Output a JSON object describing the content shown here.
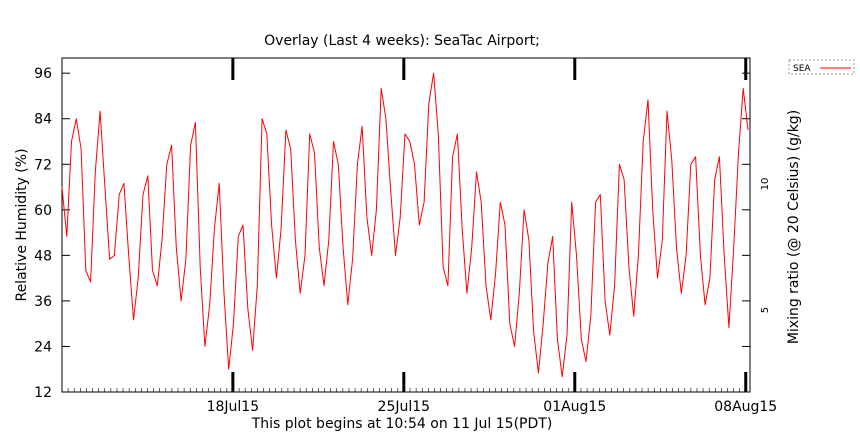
{
  "chart_data": {
    "type": "line",
    "title": "Overlay (Last 4 weeks): SeaTac Airport;",
    "xlabel": "This plot begins at 10:54 on 11 Jul 15(PDT)",
    "ylabel": "Relative Humidity (%)",
    "y2label": "Mixing ratio (@ 20 Celsius) (g/kg)",
    "x_range": [
      "2015-07-11 10:54",
      "2015-08-08 15:00"
    ],
    "x_ticks": [
      {
        "date": "2015-07-18",
        "label": "18Jul15"
      },
      {
        "date": "2015-07-25",
        "label": "25Jul15"
      },
      {
        "date": "2015-08-01",
        "label": "01Aug15"
      },
      {
        "date": "2015-08-08",
        "label": "08Aug15"
      }
    ],
    "ylim": [
      12,
      100
    ],
    "y_ticks": [
      12,
      24,
      36,
      48,
      60,
      72,
      84,
      96
    ],
    "y2_ticks": [
      {
        "value": 5,
        "label": "5"
      },
      {
        "value": 10,
        "label": "10"
      }
    ],
    "grid": false,
    "legend": "outside-top-right",
    "series": [
      {
        "name": "SEA",
        "color": "#ff0000",
        "points": [
          [
            "2015-07-11",
            66
          ],
          [
            "2015-07-11",
            53
          ],
          [
            "2015-07-12",
            78
          ],
          [
            "2015-07-12",
            84
          ],
          [
            "2015-07-12",
            76
          ],
          [
            "2015-07-12",
            44
          ],
          [
            "2015-07-12",
            41
          ],
          [
            "2015-07-13",
            70
          ],
          [
            "2015-07-13",
            86
          ],
          [
            "2015-07-13",
            66
          ],
          [
            "2015-07-13",
            47
          ],
          [
            "2015-07-13",
            48
          ],
          [
            "2015-07-14",
            64
          ],
          [
            "2015-07-14",
            67
          ],
          [
            "2015-07-14",
            48
          ],
          [
            "2015-07-14",
            31
          ],
          [
            "2015-07-14",
            42
          ],
          [
            "2015-07-15",
            64
          ],
          [
            "2015-07-15",
            69
          ],
          [
            "2015-07-15",
            44
          ],
          [
            "2015-07-15",
            40
          ],
          [
            "2015-07-15",
            52
          ],
          [
            "2015-07-16",
            72
          ],
          [
            "2015-07-16",
            77
          ],
          [
            "2015-07-16",
            50
          ],
          [
            "2015-07-16",
            36
          ],
          [
            "2015-07-16",
            47
          ],
          [
            "2015-07-17",
            77
          ],
          [
            "2015-07-17",
            83
          ],
          [
            "2015-07-17",
            45
          ],
          [
            "2015-07-17",
            24
          ],
          [
            "2015-07-17",
            35
          ],
          [
            "2015-07-18",
            55
          ],
          [
            "2015-07-18",
            67
          ],
          [
            "2015-07-18",
            38
          ],
          [
            "2015-07-18",
            18
          ],
          [
            "2015-07-18",
            30
          ],
          [
            "2015-07-19",
            53
          ],
          [
            "2015-07-19",
            56
          ],
          [
            "2015-07-19",
            34
          ],
          [
            "2015-07-19",
            23
          ],
          [
            "2015-07-19",
            40
          ],
          [
            "2015-07-20",
            84
          ],
          [
            "2015-07-20",
            80
          ],
          [
            "2015-07-20",
            56
          ],
          [
            "2015-07-20",
            42
          ],
          [
            "2015-07-20",
            55
          ],
          [
            "2015-07-21",
            81
          ],
          [
            "2015-07-21",
            76
          ],
          [
            "2015-07-21",
            52
          ],
          [
            "2015-07-21",
            38
          ],
          [
            "2015-07-21",
            48
          ],
          [
            "2015-07-22",
            80
          ],
          [
            "2015-07-22",
            75
          ],
          [
            "2015-07-22",
            50
          ],
          [
            "2015-07-22",
            40
          ],
          [
            "2015-07-22",
            52
          ],
          [
            "2015-07-23",
            78
          ],
          [
            "2015-07-23",
            72
          ],
          [
            "2015-07-23",
            50
          ],
          [
            "2015-07-23",
            35
          ],
          [
            "2015-07-23",
            47
          ],
          [
            "2015-07-24",
            72
          ],
          [
            "2015-07-24",
            82
          ],
          [
            "2015-07-24",
            58
          ],
          [
            "2015-07-24",
            48
          ],
          [
            "2015-07-24",
            60
          ],
          [
            "2015-07-25",
            92
          ],
          [
            "2015-07-25",
            84
          ],
          [
            "2015-07-25",
            65
          ],
          [
            "2015-07-25",
            48
          ],
          [
            "2015-07-25",
            58
          ],
          [
            "2015-07-26",
            80
          ],
          [
            "2015-07-26",
            78
          ],
          [
            "2015-07-26",
            72
          ],
          [
            "2015-07-26",
            56
          ],
          [
            "2015-07-26",
            62
          ],
          [
            "2015-07-27",
            88
          ],
          [
            "2015-07-27",
            96
          ],
          [
            "2015-07-27",
            80
          ],
          [
            "2015-07-27",
            45
          ],
          [
            "2015-07-27",
            40
          ],
          [
            "2015-07-28",
            74
          ],
          [
            "2015-07-28",
            80
          ],
          [
            "2015-07-28",
            55
          ],
          [
            "2015-07-28",
            38
          ],
          [
            "2015-07-28",
            50
          ],
          [
            "2015-07-29",
            70
          ],
          [
            "2015-07-29",
            62
          ],
          [
            "2015-07-29",
            40
          ],
          [
            "2015-07-29",
            31
          ],
          [
            "2015-07-29",
            43
          ],
          [
            "2015-07-30",
            62
          ],
          [
            "2015-07-30",
            56
          ],
          [
            "2015-07-30",
            30
          ],
          [
            "2015-07-30",
            24
          ],
          [
            "2015-07-30",
            38
          ],
          [
            "2015-07-31",
            60
          ],
          [
            "2015-07-31",
            52
          ],
          [
            "2015-07-31",
            28
          ],
          [
            "2015-07-31",
            17
          ],
          [
            "2015-07-31",
            30
          ],
          [
            "2015-08-01",
            46
          ],
          [
            "2015-08-01",
            53
          ],
          [
            "2015-08-01",
            26
          ],
          [
            "2015-08-01",
            16
          ],
          [
            "2015-08-01",
            27
          ],
          [
            "2015-08-02",
            62
          ],
          [
            "2015-08-02",
            48
          ],
          [
            "2015-08-02",
            26
          ],
          [
            "2015-08-02",
            20
          ],
          [
            "2015-08-02",
            32
          ],
          [
            "2015-08-03",
            62
          ],
          [
            "2015-08-03",
            64
          ],
          [
            "2015-08-03",
            36
          ],
          [
            "2015-08-03",
            27
          ],
          [
            "2015-08-03",
            40
          ],
          [
            "2015-08-04",
            72
          ],
          [
            "2015-08-04",
            68
          ],
          [
            "2015-08-04",
            45
          ],
          [
            "2015-08-04",
            32
          ],
          [
            "2015-08-04",
            48
          ],
          [
            "2015-08-05",
            78
          ],
          [
            "2015-08-05",
            89
          ],
          [
            "2015-08-05",
            60
          ],
          [
            "2015-08-05",
            42
          ],
          [
            "2015-08-05",
            52
          ],
          [
            "2015-08-06",
            86
          ],
          [
            "2015-08-06",
            73
          ],
          [
            "2015-08-06",
            50
          ],
          [
            "2015-08-06",
            38
          ],
          [
            "2015-08-06",
            48
          ],
          [
            "2015-08-07",
            72
          ],
          [
            "2015-08-07",
            74
          ],
          [
            "2015-08-07",
            48
          ],
          [
            "2015-08-07",
            35
          ],
          [
            "2015-08-07",
            42
          ],
          [
            "2015-08-08",
            68
          ],
          [
            "2015-08-08",
            74
          ],
          [
            "2015-08-08",
            48
          ],
          [
            "2015-08-08",
            29
          ],
          [
            "2015-08-08",
            50
          ],
          [
            "2015-08-08",
            75
          ],
          [
            "2015-08-08",
            92
          ],
          [
            "2015-08-08",
            81
          ]
        ]
      }
    ]
  }
}
